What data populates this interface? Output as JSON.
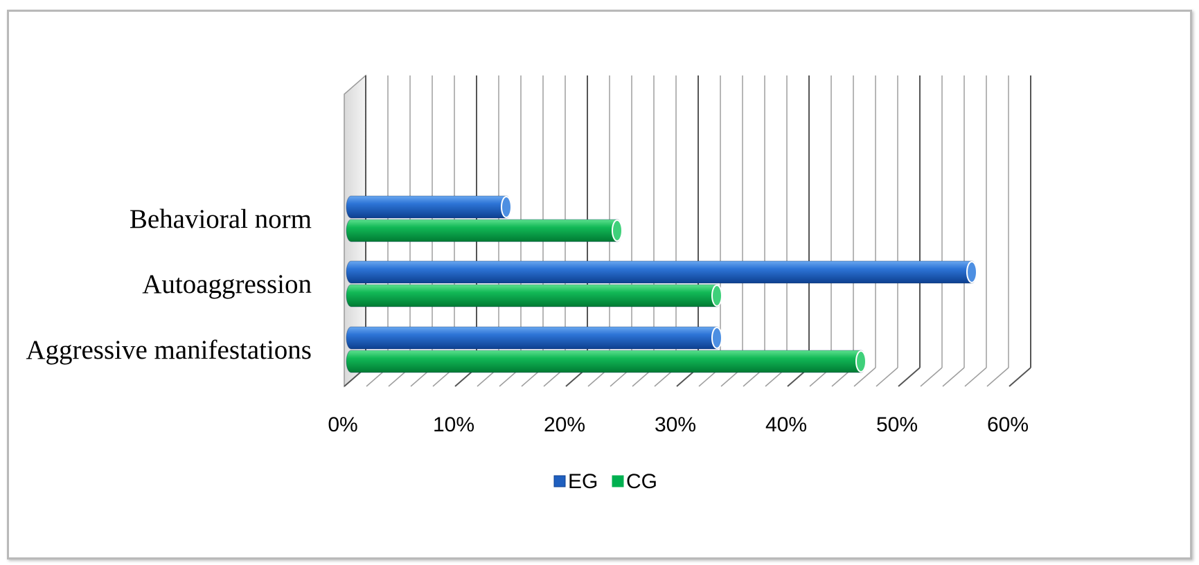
{
  "chart_data": {
    "type": "bar",
    "orientation": "horizontal",
    "categories": [
      "Aggressive manifestations",
      "Autoaggression",
      "Behavioral norm"
    ],
    "series": [
      {
        "name": "EG",
        "values": [
          33,
          56,
          14
        ],
        "color": "#1f5fbf"
      },
      {
        "name": "CG",
        "values": [
          46,
          33,
          24
        ],
        "color": "#00b050"
      }
    ],
    "xlim": [
      0,
      60
    ],
    "xticks": [
      "0%",
      "10%",
      "20%",
      "30%",
      "40%",
      "50%",
      "60%"
    ],
    "tick_values": [
      0,
      10,
      20,
      30,
      40,
      50,
      60
    ],
    "grid": true,
    "legend": {
      "position": "bottom",
      "entries": [
        "EG",
        "CG"
      ]
    }
  }
}
